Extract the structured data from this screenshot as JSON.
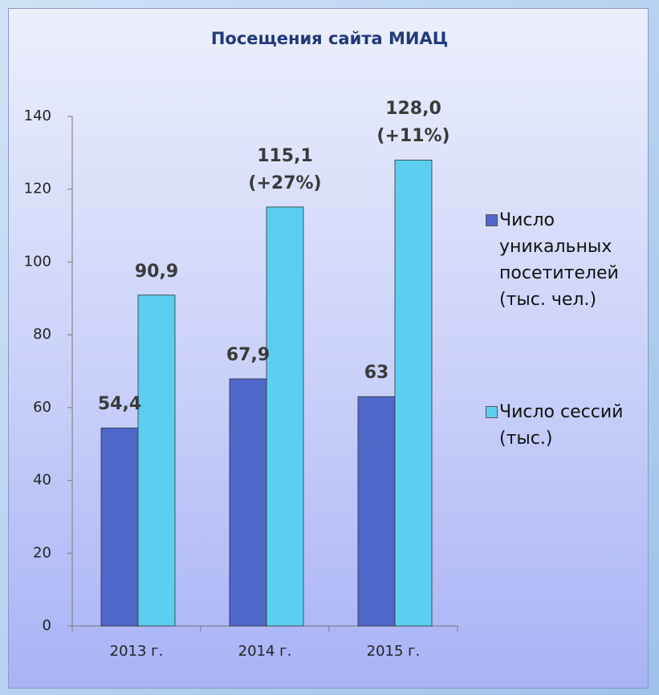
{
  "chart_data": {
    "type": "bar",
    "title": "Посещения сайта МИАЦ",
    "categories": [
      "2013 г.",
      "2014 г.",
      "2015 г."
    ],
    "series": [
      {
        "name": "Число уникальных посетителей (тыс. чел.)",
        "color": "#4f67c8",
        "values": [
          54.4,
          67.9,
          63
        ],
        "value_labels": [
          "54,4",
          "67,9",
          "63"
        ]
      },
      {
        "name": "Число сессий (тыс.)",
        "color": "#5bcff1",
        "values": [
          90.9,
          115.1,
          128.0
        ],
        "value_labels": [
          "90,9",
          "115,1\n(+27%)",
          "128,0\n(+11%)"
        ]
      }
    ],
    "ylim": [
      0,
      140
    ],
    "yticks": [
      0,
      20,
      40,
      60,
      80,
      100,
      120,
      140
    ],
    "grid": false,
    "legend": "right"
  }
}
